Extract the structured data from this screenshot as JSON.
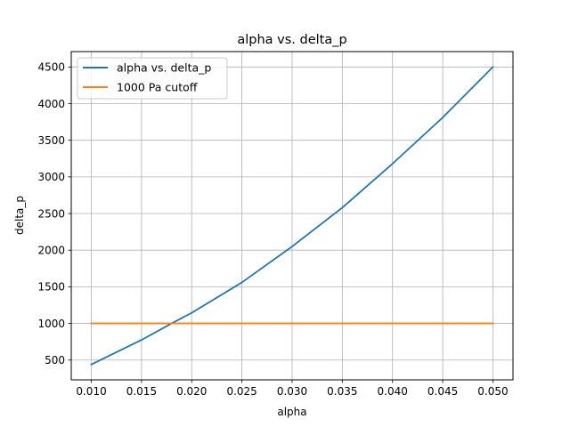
{
  "chart_data": {
    "type": "line",
    "title": "alpha vs. delta_p",
    "xlabel": "alpha",
    "ylabel": "delta_p",
    "xlim": [
      0.008,
      0.052
    ],
    "ylim": [
      230,
      4710
    ],
    "xticks": [
      0.01,
      0.015,
      0.02,
      0.025,
      0.03,
      0.035,
      0.04,
      0.045,
      0.05
    ],
    "xtick_labels": [
      "0.010",
      "0.015",
      "0.020",
      "0.025",
      "0.030",
      "0.035",
      "0.040",
      "0.045",
      "0.050"
    ],
    "yticks": [
      500,
      1000,
      1500,
      2000,
      2500,
      3000,
      3500,
      4000,
      4500
    ],
    "ytick_labels": [
      "500",
      "1000",
      "1500",
      "2000",
      "2500",
      "3000",
      "3500",
      "4000",
      "4500"
    ],
    "grid": true,
    "legend_position": "top-left",
    "series": [
      {
        "name": "alpha vs. delta_p",
        "color": "#1f77b4",
        "x": [
          0.01,
          0.015,
          0.018,
          0.02,
          0.025,
          0.03,
          0.035,
          0.04,
          0.045,
          0.05
        ],
        "y": [
          440,
          775,
          1000,
          1145,
          1560,
          2050,
          2580,
          3180,
          3810,
          4500
        ]
      },
      {
        "name": "1000 Pa cutoff",
        "color": "#ff7f0e",
        "x": [
          0.01,
          0.05
        ],
        "y": [
          1000,
          1000
        ]
      }
    ]
  }
}
